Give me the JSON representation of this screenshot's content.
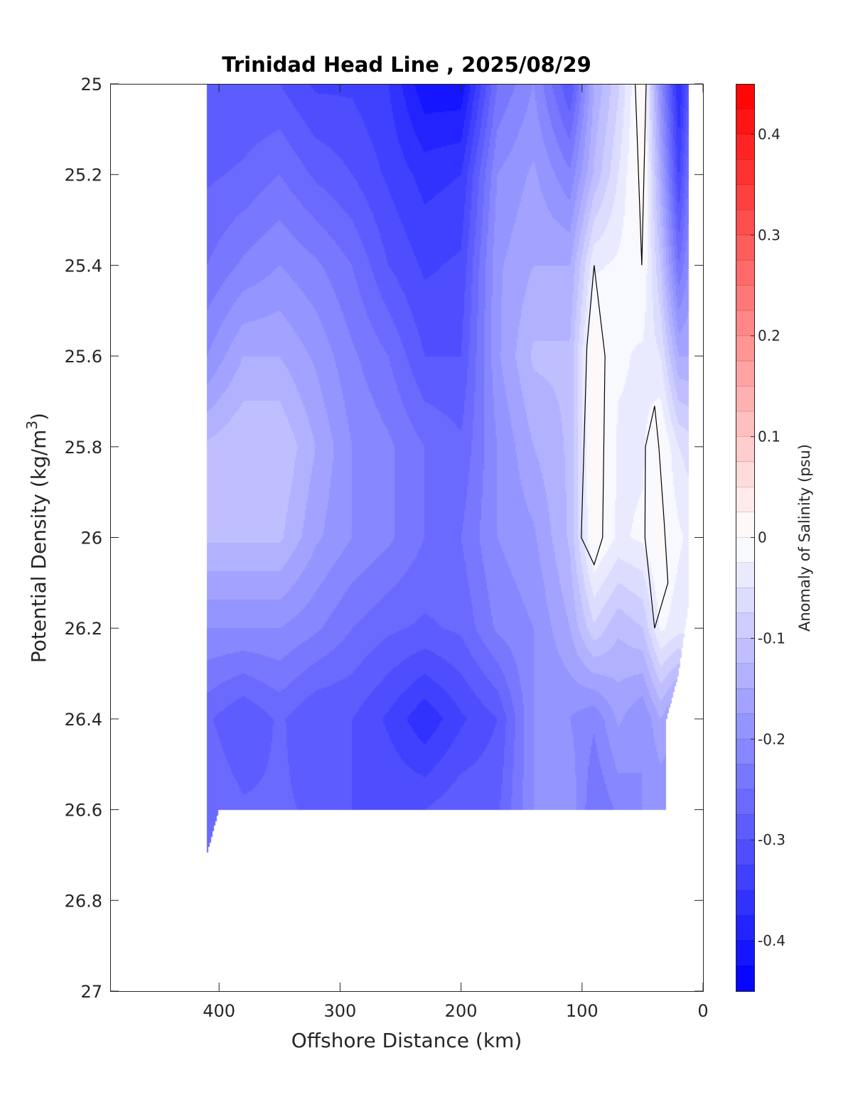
{
  "chart_data": {
    "type": "heatmap",
    "subtype": "filled-contour",
    "title": "Trinidad Head Line , 2025/08/29",
    "xlabel": "Offshore Distance (km)",
    "ylabel_main": "Potential Density (kg/m",
    "ylabel_sup": "3",
    "ylabel_close": ")",
    "colorbar_label": "Anomaly of Salinity (psu)",
    "xlim": [
      490,
      0
    ],
    "x_reversed": true,
    "ylim": [
      27,
      25
    ],
    "y_reversed": true,
    "clim": [
      -0.45,
      0.45
    ],
    "contour_step": 0.025,
    "colormap": {
      "negative": "#0000ff",
      "zero": "#ffffff",
      "positive": "#ff0000"
    },
    "x_ticks": [
      "400",
      "300",
      "200",
      "100",
      "0"
    ],
    "x_tick_values": [
      400,
      300,
      200,
      100,
      0
    ],
    "y_ticks": [
      "25",
      "25.2",
      "25.4",
      "25.6",
      "25.8",
      "26",
      "26.2",
      "26.4",
      "26.6",
      "26.8",
      "27"
    ],
    "y_tick_values": [
      25,
      25.2,
      25.4,
      25.6,
      25.8,
      26,
      26.2,
      26.4,
      26.6,
      26.8,
      27
    ],
    "colorbar_ticks": [
      "0.4",
      "0.3",
      "0.2",
      "0.1",
      "0",
      "-0.1",
      "-0.2",
      "-0.3",
      "-0.4"
    ],
    "colorbar_tick_values": [
      0.4,
      0.3,
      0.2,
      0.1,
      0,
      -0.1,
      -0.2,
      -0.3,
      -0.4
    ],
    "grid": false,
    "distance_km": [
      410,
      380,
      350,
      320,
      290,
      260,
      230,
      200,
      170,
      140,
      110,
      90,
      70,
      50,
      35,
      20,
      12
    ],
    "density": [
      25.0,
      25.2,
      25.4,
      25.6,
      25.8,
      26.0,
      26.2,
      26.4,
      26.6
    ],
    "salinity_anomaly": [
      [
        -0.3,
        -0.3,
        -0.3,
        -0.33,
        -0.33,
        -0.35,
        -0.42,
        -0.42,
        -0.25,
        -0.2,
        -0.3,
        -0.15,
        -0.08,
        0.02,
        -0.2,
        -0.38,
        -0.3
      ],
      [
        -0.28,
        -0.27,
        -0.25,
        -0.28,
        -0.3,
        -0.33,
        -0.36,
        -0.35,
        -0.2,
        -0.17,
        -0.22,
        -0.12,
        -0.05,
        0.02,
        -0.15,
        -0.33,
        -0.25
      ],
      [
        -0.25,
        -0.22,
        -0.2,
        -0.22,
        -0.25,
        -0.3,
        -0.33,
        -0.32,
        -0.18,
        -0.15,
        -0.15,
        -0.03,
        -0.02,
        0.0,
        -0.1,
        -0.25,
        -0.2
      ],
      [
        -0.2,
        -0.15,
        -0.15,
        -0.18,
        -0.22,
        -0.25,
        -0.3,
        -0.3,
        -0.18,
        -0.12,
        -0.12,
        0.02,
        -0.02,
        -0.03,
        -0.05,
        -0.15,
        -0.15
      ],
      [
        -0.12,
        -0.1,
        -0.1,
        -0.15,
        -0.2,
        -0.22,
        -0.25,
        -0.27,
        -0.2,
        -0.15,
        -0.12,
        0.02,
        -0.03,
        -0.03,
        0.005,
        -0.05,
        -0.06
      ],
      [
        -0.12,
        -0.12,
        -0.12,
        -0.17,
        -0.2,
        -0.22,
        -0.25,
        -0.25,
        -0.2,
        -0.18,
        -0.12,
        0.01,
        -0.03,
        -0.02,
        0.01,
        -0.02,
        -0.03
      ],
      [
        -0.2,
        -0.2,
        -0.2,
        -0.22,
        -0.25,
        -0.27,
        -0.28,
        -0.27,
        -0.22,
        -0.2,
        -0.15,
        -0.08,
        -0.12,
        -0.1,
        -0.02,
        -0.04,
        -0.05
      ],
      [
        -0.27,
        -0.3,
        -0.27,
        -0.3,
        -0.3,
        -0.33,
        -0.37,
        -0.33,
        -0.3,
        -0.2,
        -0.2,
        -0.22,
        -0.17,
        -0.2,
        -0.15,
        -0.2,
        null
      ],
      [
        -0.25,
        -0.27,
        -0.27,
        -0.28,
        -0.3,
        -0.3,
        -0.3,
        -0.28,
        -0.28,
        -0.2,
        -0.18,
        -0.25,
        -0.22,
        -0.2,
        -0.2,
        null,
        null
      ]
    ],
    "zero_contours": [
      [
        [
          90,
          25.4
        ],
        [
          96,
          25.58
        ],
        [
          100.6,
          26.0
        ],
        [
          90,
          26.06
        ],
        [
          83,
          26.0
        ],
        [
          81,
          25.6
        ],
        [
          90,
          25.4
        ]
      ],
      [
        [
          56,
          25.0
        ],
        [
          50.6,
          25.4
        ],
        [
          47,
          25.0
        ]
      ],
      [
        [
          40,
          25.71
        ],
        [
          47.6,
          25.8
        ],
        [
          48,
          26.0
        ],
        [
          40,
          26.2
        ],
        [
          29,
          26.1
        ],
        [
          32,
          25.97
        ],
        [
          36.5,
          25.8
        ],
        [
          40,
          25.71
        ]
      ]
    ]
  }
}
